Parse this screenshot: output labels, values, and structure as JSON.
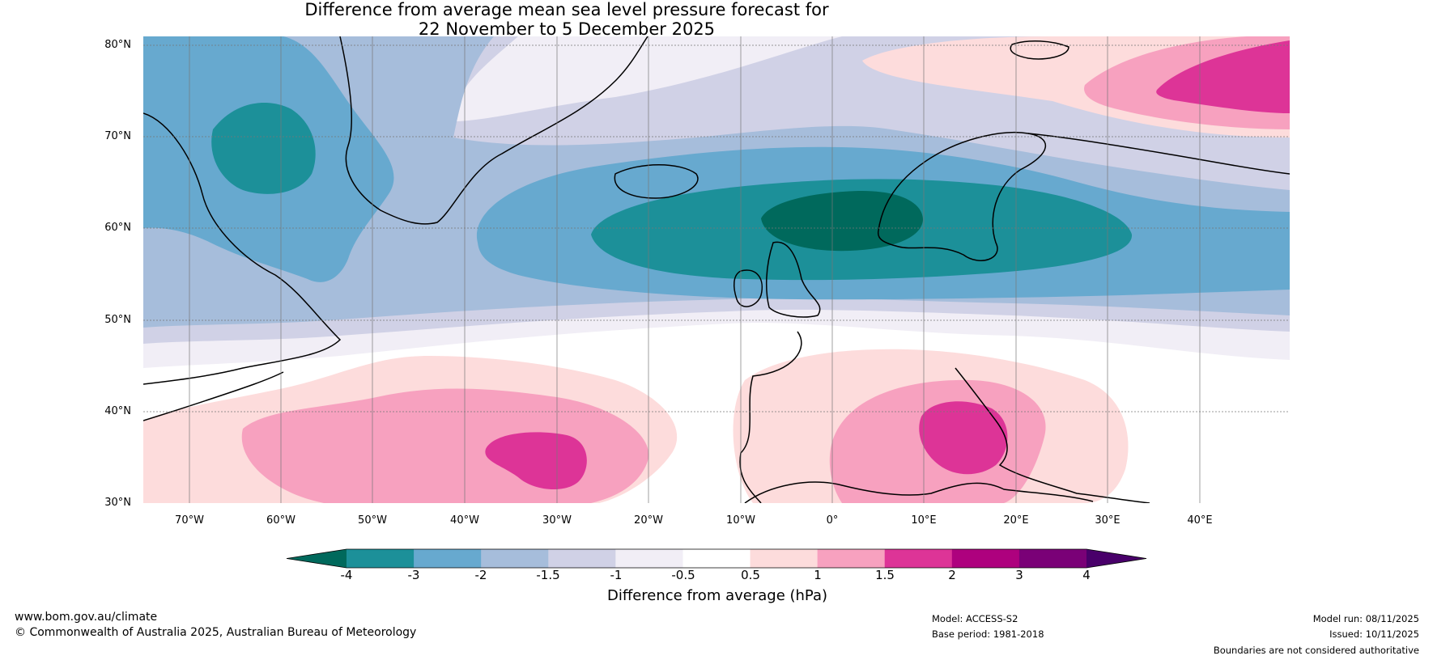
{
  "title": {
    "line1": "Difference from average mean sea level pressure forecast for",
    "line2": "22 November to 5 December 2025"
  },
  "latitude_labels": [
    "80°N",
    "70°N",
    "60°N",
    "50°N",
    "40°N",
    "30°N"
  ],
  "longitude_labels": [
    "70°W",
    "60°W",
    "50°W",
    "40°W",
    "30°W",
    "20°W",
    "10°W",
    "0°",
    "10°E",
    "20°E",
    "30°E",
    "40°E"
  ],
  "colorbar": {
    "title": "Difference from average (hPa)",
    "tick_labels": [
      "-4",
      "-3",
      "-2",
      "-1.5",
      "-1",
      "-0.5",
      "0.5",
      "1",
      "1.5",
      "2",
      "3",
      "4"
    ],
    "colors": [
      "#00695c",
      "#1c9099",
      "#67a9cf",
      "#a6bddb",
      "#d0d1e6",
      "#f1eef6",
      "#ffffff",
      "#fddcdc",
      "#f7a1bf",
      "#dd3497",
      "#ae017e",
      "#7a0177",
      "#49006a"
    ]
  },
  "map_regions": [
    {
      "name": "negative-anomaly-north-atlantic",
      "category": "-2 to -1.5"
    },
    {
      "name": "negative-anomaly-scandinavia",
      "category": "-4 to -3"
    },
    {
      "name": "positive-anomaly-azores",
      "category": "1.5 to 2"
    },
    {
      "name": "positive-anomaly-mediterranean",
      "category": "1.5 to 2"
    },
    {
      "name": "positive-anomaly-barents-sea",
      "category": "1.5 to 2"
    }
  ],
  "footer": {
    "website": "www.bom.gov.au/climate",
    "copyright": "© Commonwealth of Australia 2025, Australian Bureau of Meteorology",
    "model": "Model: ACCESS-S2",
    "base_period": "Base period: 1981-2018",
    "model_run": "Model run: 08/11/2025",
    "issued": "Issued: 10/11/2025",
    "disclaimer": "Boundaries are not considered authoritative"
  }
}
